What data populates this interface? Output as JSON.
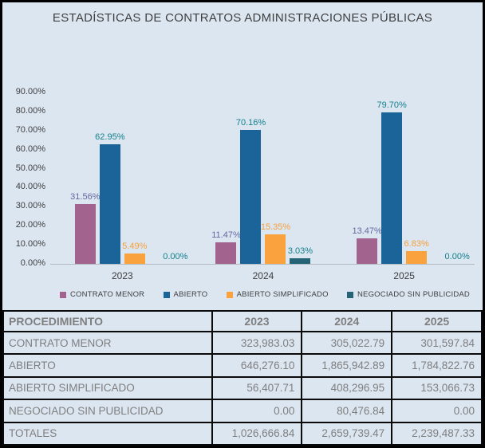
{
  "title": "ESTADÍSTICAS DE CONTRATOS ADMINISTRACIONES PÚBLICAS",
  "chart_data": {
    "type": "bar",
    "title": "ESTADÍSTICAS DE CONTRATOS ADMINISTRACIONES PÚBLICAS",
    "categories": [
      "2023",
      "2024",
      "2025"
    ],
    "series": [
      {
        "name": "CONTRATO MENOR",
        "color": "#a2648f",
        "label_color": "#6667a0",
        "values": [
          31.56,
          11.47,
          13.47
        ]
      },
      {
        "name": "ABIERTO",
        "color": "#1b6499",
        "label_color": "#14808c",
        "values": [
          62.95,
          70.16,
          79.7
        ]
      },
      {
        "name": "ABIERTO SIMPLIFICADO",
        "color": "#faa33e",
        "label_color": "#f6a03b",
        "values": [
          5.49,
          15.35,
          6.83
        ]
      },
      {
        "name": "NEGOCIADO SIN PUBLICIDAD",
        "color": "#256476",
        "label_color": "#14808c",
        "values": [
          0.0,
          3.03,
          0.0
        ]
      }
    ],
    "ylim": [
      0,
      90
    ],
    "ytick_labels": [
      "0.00%",
      "10.00%",
      "20.00%",
      "30.00%",
      "40.00%",
      "50.00%",
      "60.00%",
      "70.00%",
      "80.00%",
      "90.00%"
    ],
    "value_label_suffix": "%",
    "grid": false,
    "legend_position": "bottom",
    "xlabel": "",
    "ylabel": ""
  },
  "table": {
    "header": [
      "PROCEDIMIENTO",
      "2023",
      "2024",
      "2025"
    ],
    "rows": [
      [
        "CONTRATO MENOR",
        "323,983.03",
        "305,022.79",
        "301,597.84"
      ],
      [
        "ABIERTO",
        "646,276.10",
        "1,865,942.89",
        "1,784,822.76"
      ],
      [
        "ABIERTO SIMPLIFICADO",
        "56,407.71",
        "408,296.95",
        "153,066.73"
      ],
      [
        "NEGOCIADO SIN PUBLICIDAD",
        "0.00",
        "80,476.84",
        "0.00"
      ],
      [
        "TOTALES",
        "1,026,666.84",
        "2,659,739.47",
        "2,239,487.33"
      ]
    ]
  },
  "colors": {
    "background": "#dce6f1",
    "frame_border": "#000000",
    "axis_text": "#3f3f3f",
    "axis_line": "#b3bac4",
    "table_text": "#7f7f7f",
    "table_border": "#0a0a0a"
  }
}
